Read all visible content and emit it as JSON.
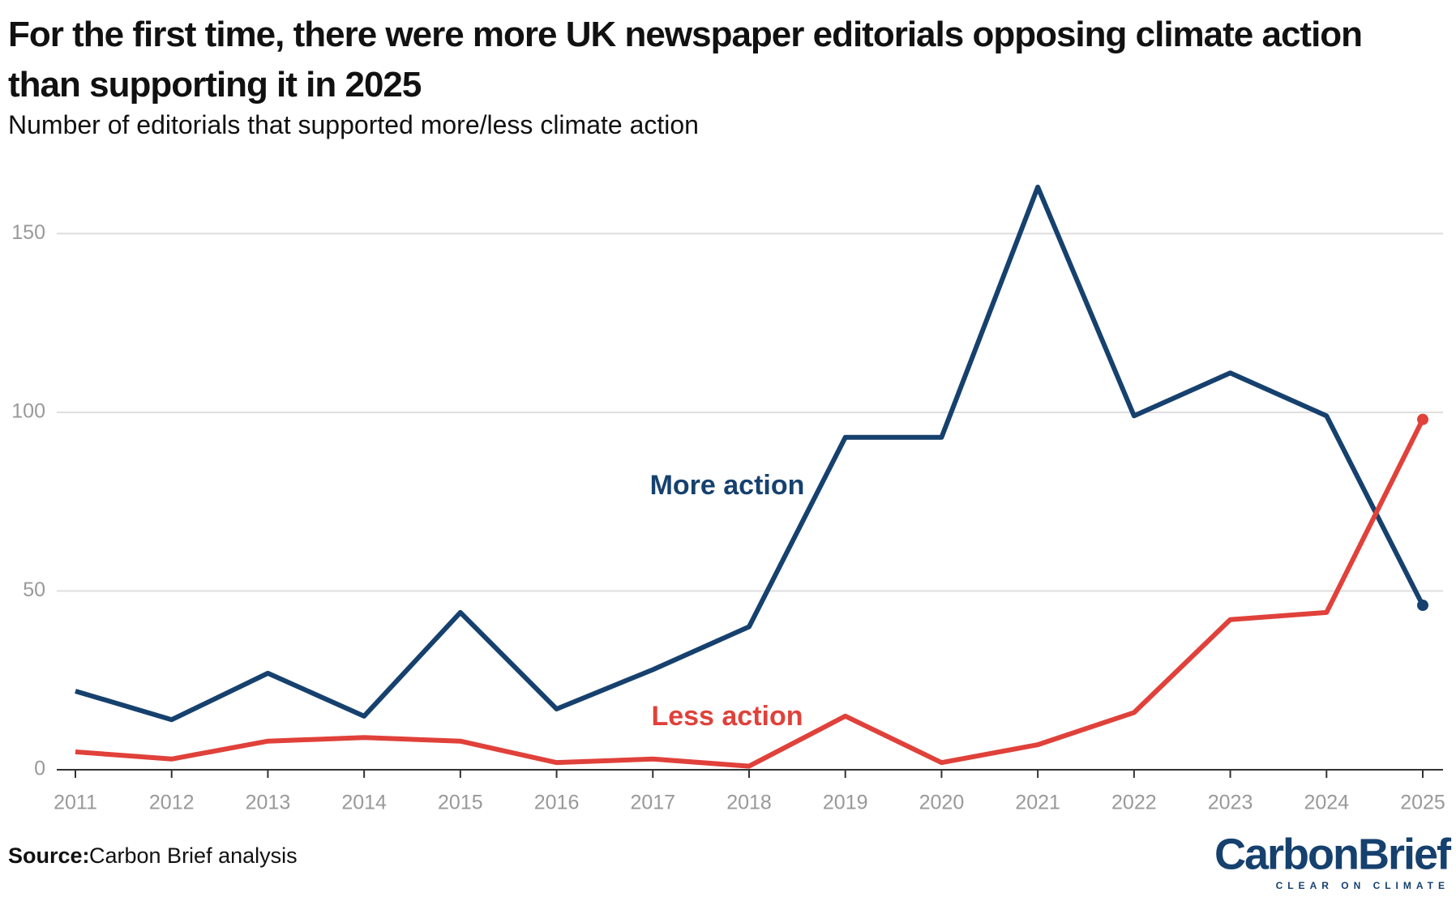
{
  "chart_data": {
    "type": "line",
    "title": "For the first time, there were more UK newspaper editorials opposing climate action than supporting it in 2025",
    "subtitle": "Number of editorials that supported more/less climate action",
    "categories": [
      "2011",
      "2012",
      "2013",
      "2014",
      "2015",
      "2016",
      "2017",
      "2018",
      "2019",
      "2020",
      "2021",
      "2022",
      "2023",
      "2024",
      "2025"
    ],
    "series": [
      {
        "name": "More action",
        "color": "#16416e",
        "values": [
          22,
          14,
          27,
          15,
          44,
          17,
          28,
          40,
          93,
          93,
          163,
          99,
          111,
          99,
          46
        ]
      },
      {
        "name": "Less action",
        "color": "#e0413a",
        "values": [
          5,
          3,
          8,
          9,
          8,
          2,
          3,
          1,
          15,
          2,
          7,
          16,
          42,
          44,
          98
        ]
      }
    ],
    "ylim": [
      0,
      170
    ],
    "yticks": [
      0,
      50,
      100,
      150
    ],
    "grid": true,
    "source_label": "Source:",
    "source": "Carbon Brief analysis",
    "logo": "CarbonBrief",
    "logo_tagline": "CLEAR ON CLIMATE"
  }
}
